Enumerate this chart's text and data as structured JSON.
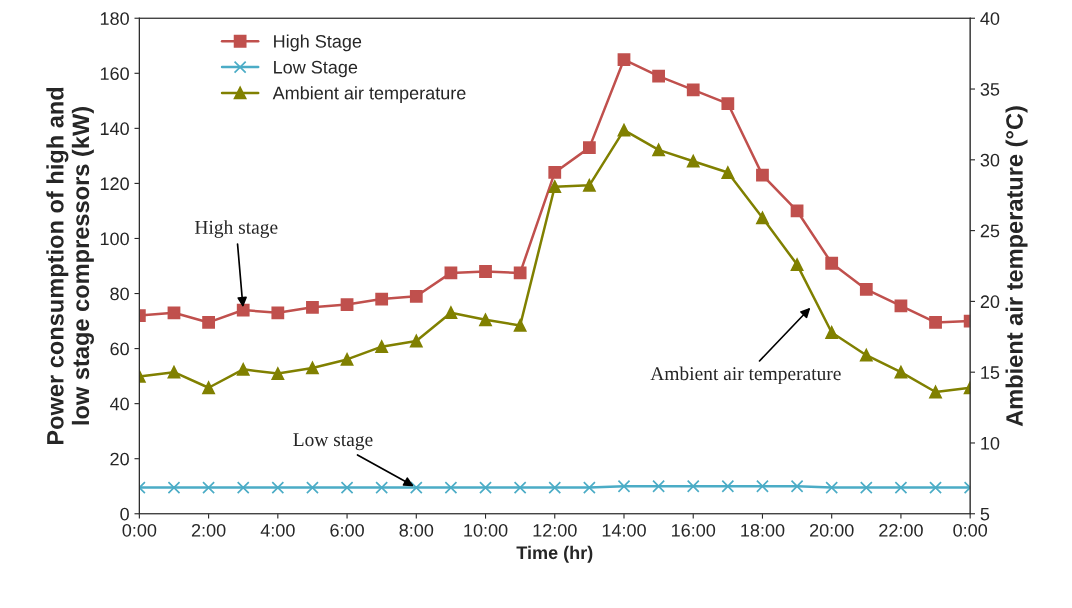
{
  "chart_data": {
    "type": "line",
    "xlabel": "Time (hr)",
    "ylabel": "Power consumption of high and\nlow stage compressors (kW)",
    "y2label": "Ambient air temperature (°C)",
    "x": [
      0,
      1,
      2,
      3,
      4,
      5,
      6,
      7,
      8,
      9,
      10,
      11,
      12,
      13,
      14,
      15,
      16,
      17,
      18,
      19,
      20,
      21,
      22,
      23,
      24
    ],
    "series": [
      {
        "name": "High Stage",
        "color": "#c0504d",
        "marker": "square",
        "values": [
          72,
          73,
          69.5,
          74,
          73,
          75,
          76,
          78,
          79,
          87.5,
          88,
          87.5,
          124,
          133,
          165,
          159,
          154,
          149,
          123,
          110,
          91,
          81.5,
          75.5,
          69.5,
          70
        ]
      },
      {
        "name": "Low Stage",
        "color": "#4bacc6",
        "marker": "cross",
        "values": [
          9.5,
          9.5,
          9.5,
          9.5,
          9.5,
          9.5,
          9.5,
          9.5,
          9.5,
          9.5,
          9.5,
          9.5,
          9.5,
          9.5,
          10,
          10,
          10,
          10,
          10,
          10,
          9.5,
          9.5,
          9.5,
          9.5,
          9.5
        ]
      },
      {
        "name": "Ambient air temperature",
        "color": "#808000",
        "marker": "triangle",
        "axis": "y2",
        "values": [
          14.7,
          15.0,
          13.9,
          15.2,
          14.9,
          15.3,
          15.9,
          16.8,
          17.2,
          19.2,
          18.7,
          18.3,
          28.1,
          28.2,
          32.1,
          30.7,
          29.9,
          29.1,
          25.9,
          22.6,
          17.8,
          16.2,
          15.0,
          13.6,
          13.9
        ]
      }
    ],
    "xlim": [
      0,
      24
    ],
    "xticks": [
      {
        "value": 0,
        "label": "0:00"
      },
      {
        "value": 2,
        "label": "2:00"
      },
      {
        "value": 4,
        "label": "4:00"
      },
      {
        "value": 6,
        "label": "6:00"
      },
      {
        "value": 8,
        "label": "8:00"
      },
      {
        "value": 10,
        "label": "10:00"
      },
      {
        "value": 12,
        "label": "12:00"
      },
      {
        "value": 14,
        "label": "14:00"
      },
      {
        "value": 16,
        "label": "16:00"
      },
      {
        "value": 18,
        "label": "18:00"
      },
      {
        "value": 20,
        "label": "20:00"
      },
      {
        "value": 22,
        "label": "22:00"
      },
      {
        "value": 24,
        "label": "0:00"
      }
    ],
    "ylim": [
      0,
      180
    ],
    "yticks": [
      0,
      20,
      40,
      60,
      80,
      100,
      120,
      140,
      160,
      180
    ],
    "y2lim": [
      5,
      40
    ],
    "y2ticks": [
      5,
      10,
      15,
      20,
      25,
      30,
      35,
      40
    ],
    "annotations": [
      {
        "text": "High stage",
        "x": 3,
        "y": 74
      },
      {
        "text": "Low stage",
        "x": 8,
        "y": 9.5
      },
      "Ambient air temperature"
    ],
    "legend": "top left",
    "grid": false,
    "line_style": "solid"
  }
}
